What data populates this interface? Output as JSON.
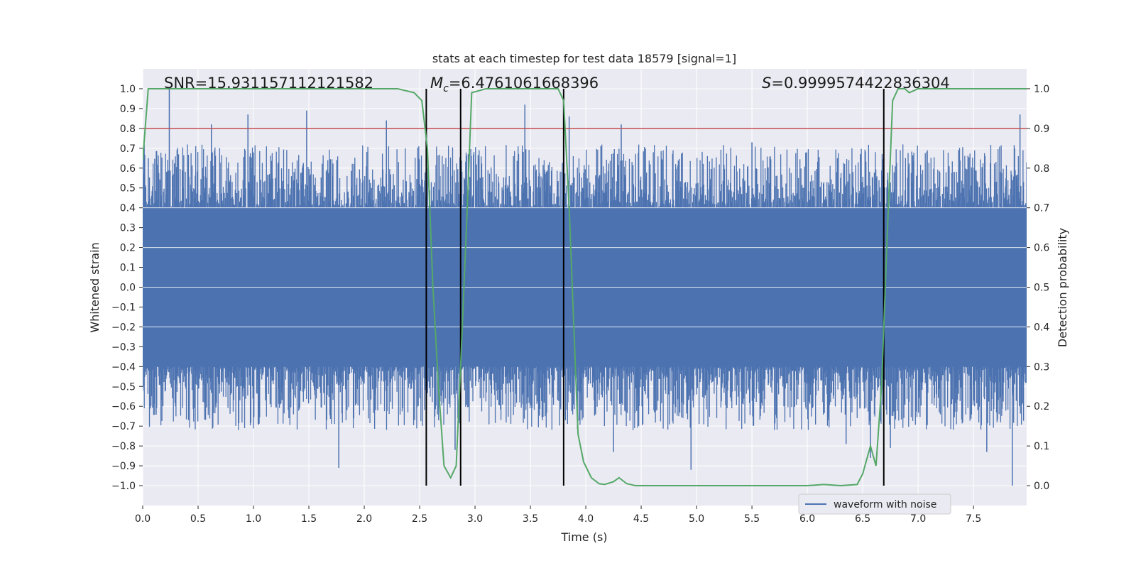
{
  "chart_data": {
    "type": "line",
    "title": "stats at each timestep for test data 18579 [signal=1]",
    "xlabel": "Time (s)",
    "ylabel": "Whitened strain",
    "y2label": "Detection probability",
    "xlim": [
      0.0,
      7.98
    ],
    "ylim": [
      -1.1,
      1.1
    ],
    "y2lim": [
      -0.05,
      1.05
    ],
    "xticks": [
      "0.0",
      "0.5",
      "1.0",
      "1.5",
      "2.0",
      "2.5",
      "3.0",
      "3.5",
      "4.0",
      "4.5",
      "5.0",
      "5.5",
      "6.0",
      "6.5",
      "7.0",
      "7.5"
    ],
    "xtick_values": [
      0.0,
      0.5,
      1.0,
      1.5,
      2.0,
      2.5,
      3.0,
      3.5,
      4.0,
      4.5,
      5.0,
      5.5,
      6.0,
      6.5,
      7.0,
      7.5
    ],
    "yticks": [
      "1.0",
      "0.9",
      "0.8",
      "0.7",
      "0.6",
      "0.5",
      "0.4",
      "0.3",
      "0.2",
      "0.1",
      "0.0",
      "−0.1",
      "−0.2",
      "−0.3",
      "−0.4",
      "−0.5",
      "−0.6",
      "−0.7",
      "−0.8",
      "−0.9",
      "−1.0"
    ],
    "ytick_values": [
      1.0,
      0.9,
      0.8,
      0.7,
      0.6,
      0.5,
      0.4,
      0.3,
      0.2,
      0.1,
      0.0,
      -0.1,
      -0.2,
      -0.3,
      -0.4,
      -0.5,
      -0.6,
      -0.7,
      -0.8,
      -0.9,
      -1.0
    ],
    "y2ticks": [
      "1.0",
      "0.9",
      "0.8",
      "0.7",
      "0.6",
      "0.5",
      "0.4",
      "0.3",
      "0.2",
      "0.1",
      "0.0"
    ],
    "y2tick_values": [
      1.0,
      0.9,
      0.8,
      0.7,
      0.6,
      0.5,
      0.4,
      0.3,
      0.2,
      0.1,
      0.0
    ],
    "grid": true,
    "legend_position": "bottom-right",
    "annotations": {
      "snr": "SNR=15.931157112121582",
      "mc_symbol": "M",
      "mc_sub": "c",
      "mc_value": "=6.4761061668396",
      "s_symbol": "S",
      "s_value": "=0.9999574422836304"
    },
    "threshold": 0.9,
    "vlines": [
      2.56,
      2.87,
      3.8,
      6.69
    ],
    "waveform": {
      "name": "waveform with noise",
      "envelope_low": -0.4,
      "envelope_high": 0.4,
      "spike_times": [
        0.05,
        0.24,
        0.62,
        0.95,
        1.48,
        1.77,
        2.2,
        2.82,
        3.45,
        3.85,
        4.25,
        4.32,
        4.95,
        5.5,
        6.35,
        6.57,
        6.75,
        7.62,
        7.85,
        7.92
      ],
      "spike_values": [
        0.65,
        1.0,
        0.82,
        0.87,
        0.89,
        -0.91,
        0.84,
        -0.82,
        0.92,
        0.86,
        -0.83,
        0.82,
        -0.92,
        0.73,
        -0.79,
        -0.86,
        -0.81,
        -0.83,
        -1.0,
        0.87
      ]
    },
    "series": [
      {
        "name": "detection probability",
        "x": [
          0.0,
          0.05,
          0.15,
          0.3,
          0.5,
          1.0,
          1.5,
          2.0,
          2.3,
          2.45,
          2.52,
          2.57,
          2.62,
          2.67,
          2.72,
          2.78,
          2.83,
          2.87,
          2.93,
          2.97,
          3.1,
          3.5,
          3.75,
          3.8,
          3.85,
          3.93,
          3.98,
          4.05,
          4.12,
          4.17,
          4.25,
          4.3,
          4.37,
          4.45,
          4.7,
          5.0,
          5.5,
          6.0,
          6.15,
          6.3,
          6.45,
          6.5,
          6.57,
          6.62,
          6.67,
          6.72,
          6.77,
          6.82,
          6.88,
          6.92,
          7.0,
          7.2,
          7.5,
          7.98
        ],
        "y": [
          0.82,
          1.0,
          1.0,
          1.0,
          1.0,
          1.0,
          1.0,
          1.0,
          1.0,
          0.99,
          0.97,
          0.85,
          0.5,
          0.25,
          0.05,
          0.02,
          0.05,
          0.3,
          0.7,
          0.99,
          1.0,
          1.0,
          1.0,
          0.97,
          0.7,
          0.13,
          0.06,
          0.02,
          0.005,
          0.003,
          0.01,
          0.02,
          0.005,
          0.0,
          0.0,
          0.0,
          0.0,
          0.0,
          0.003,
          0.0,
          0.003,
          0.03,
          0.1,
          0.05,
          0.25,
          0.62,
          0.97,
          1.0,
          1.0,
          0.99,
          1.0,
          1.0,
          1.0,
          1.0
        ]
      }
    ]
  }
}
